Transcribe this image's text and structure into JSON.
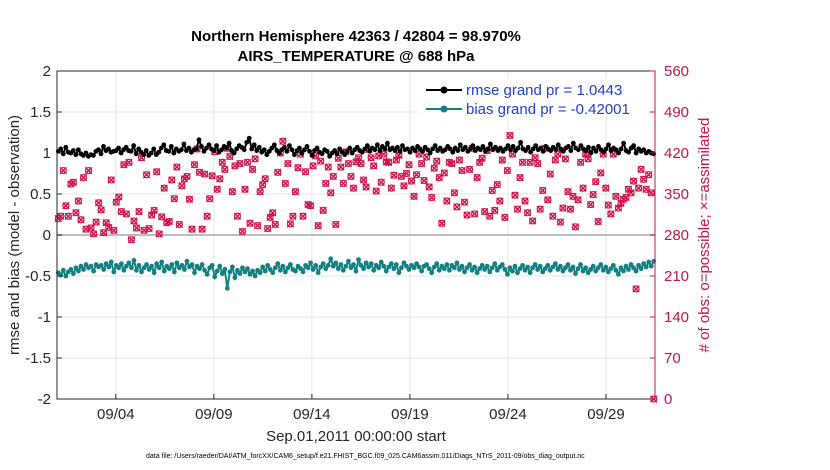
{
  "chart_data": {
    "type": "line",
    "title": "Northern Hemisphere 42363 / 42804 = 98.970%",
    "subtitle": "AIRS_TEMPERATURE @ 688 hPa",
    "xlabel": "Sep.01,2011 00:00:00 start",
    "ylabel": "rmse and bias (model - observation)",
    "ylabel_right": "# of obs: o=possible; ×=assimilated",
    "footnote": "data file: /Users/raeder/DAI/ATM_forcXX/CAM6_setup/f.e21.FHIST_BGC.f09_025.CAM6assim.011/Diags_NTrS_2011-09/obs_diag_output.nc",
    "xlim": [
      1,
      31.5
    ],
    "ylim": [
      -2,
      2
    ],
    "ylim_right": [
      0,
      560
    ],
    "x_ticks": [
      4,
      9,
      14,
      19,
      24,
      29
    ],
    "x_tick_labels": [
      "09/04",
      "09/09",
      "09/14",
      "09/19",
      "09/24",
      "09/29"
    ],
    "y_ticks": [
      -2,
      -1.5,
      -1,
      -0.5,
      0,
      0.5,
      1,
      1.5,
      2
    ],
    "y_tick_labels": [
      "-2",
      "-1.5",
      "-1",
      "-0.5",
      "0",
      "0.5",
      "1",
      "1.5",
      "2"
    ],
    "y_right_ticks": [
      0,
      70,
      140,
      210,
      280,
      350,
      420,
      490,
      560
    ],
    "y_right_tick_labels": [
      "0",
      "70",
      "140",
      "210",
      "280",
      "350",
      "420",
      "490",
      "560"
    ],
    "legend": {
      "position": "top-right",
      "entries": [
        "rmse grand pr = 1.0443",
        "bias grand pr = -0.42001"
      ]
    },
    "series": [
      {
        "name": "rmse grand pr = 1.0443",
        "axis": "left",
        "color": "#000000",
        "values": [
          1.02,
          1.05,
          0.99,
          1.07,
          1.01,
          1.0,
          1.03,
          0.98,
          1.04,
          0.99,
          0.97,
          1.0,
          0.96,
          0.98,
          0.97,
          1.02,
          1.04,
          0.99,
          1.08,
          1.03,
          1.05,
          1.01,
          1.02,
          1.03,
          1.06,
          1.0,
          1.04,
          1.07,
          1.03,
          1.02,
          1.09,
          0.99,
          1.05,
          1.01,
          0.98,
          1.03,
          0.97,
          1.0,
          1.05,
          0.98,
          1.01,
          1.06,
          1.1,
          1.03,
          1.02,
          1.08,
          1.0,
          1.05,
          1.02,
          1.04,
          1.11,
          1.03,
          1.06,
          1.01,
          1.04,
          1.05,
          1.16,
          1.08,
          1.02,
          1.06,
          1.1,
          1.05,
          1.03,
          1.09,
          1.01,
          1.04,
          1.08,
          1.06,
          1.12,
          1.03,
          1.0,
          1.05,
          1.09,
          1.07,
          1.04,
          1.13,
          1.18,
          1.05,
          1.1,
          1.03,
          1.07,
          1.01,
          1.04,
          0.98,
          1.02,
          1.06,
          1.1,
          1.03,
          1.0,
          1.04,
          1.07,
          1.02,
          1.09,
          1.04,
          0.98,
          1.03,
          1.06,
          1.0,
          1.04,
          1.08,
          1.02,
          0.97,
          1.03,
          1.06,
          1.01,
          0.99,
          1.04,
          1.02,
          0.96,
          1.0,
          1.03,
          0.99,
          1.05,
          1.01,
          0.98,
          1.02,
          1.06,
          1.0,
          1.04,
          1.07,
          1.03,
          1.01,
          1.05,
          1.09,
          1.02,
          1.06,
          1.04,
          1.1,
          1.03,
          1.08,
          1.05,
          1.12,
          1.04,
          1.06,
          1.03,
          1.07,
          1.02,
          1.09,
          1.04,
          1.05,
          1.01,
          1.06,
          1.03,
          1.08,
          1.05,
          1.02,
          1.07,
          1.04,
          1.0,
          1.05,
          1.09,
          1.03,
          1.06,
          1.02,
          1.04,
          1.08,
          1.05,
          1.01,
          1.06,
          1.03,
          1.1,
          1.04,
          1.07,
          1.02,
          1.05,
          1.09,
          1.03,
          1.06,
          1.04,
          1.08,
          1.02,
          1.05,
          1.11,
          1.04,
          1.07,
          1.03,
          1.06,
          1.02,
          1.05,
          1.09,
          1.04,
          1.08,
          1.03,
          1.06,
          1.13,
          1.05,
          1.03,
          1.07,
          1.01,
          1.05,
          1.09,
          1.04,
          1.06,
          1.02,
          1.08,
          1.05,
          1.03,
          1.07,
          1.04,
          1.1,
          1.05,
          1.02,
          1.06,
          1.08,
          1.03,
          1.12,
          1.06,
          1.04,
          1.09,
          1.05,
          1.03,
          1.07,
          1.0,
          1.06,
          1.02,
          1.08,
          1.04,
          1.01,
          1.05,
          1.1,
          1.03,
          1.06,
          1.04,
          1.0,
          1.05,
          1.12,
          1.03,
          1.01,
          1.06,
          1.09,
          1.0,
          1.05,
          1.02,
          1.04,
          1.0,
          1.02,
          1.0,
          0.99
        ]
      },
      {
        "name": "bias grand pr = -0.42001",
        "axis": "left",
        "color": "#128080",
        "values": [
          -0.46,
          -0.49,
          -0.43,
          -0.5,
          -0.45,
          -0.42,
          -0.47,
          -0.4,
          -0.44,
          -0.38,
          -0.42,
          -0.36,
          -0.4,
          -0.38,
          -0.44,
          -0.36,
          -0.39,
          -0.37,
          -0.42,
          -0.35,
          -0.39,
          -0.33,
          -0.45,
          -0.37,
          -0.4,
          -0.35,
          -0.43,
          -0.38,
          -0.34,
          -0.4,
          -0.31,
          -0.43,
          -0.37,
          -0.45,
          -0.4,
          -0.36,
          -0.42,
          -0.38,
          -0.46,
          -0.35,
          -0.4,
          -0.33,
          -0.44,
          -0.38,
          -0.41,
          -0.36,
          -0.45,
          -0.34,
          -0.4,
          -0.37,
          -0.42,
          -0.32,
          -0.39,
          -0.36,
          -0.46,
          -0.38,
          -0.41,
          -0.36,
          -0.43,
          -0.48,
          -0.4,
          -0.37,
          -0.51,
          -0.44,
          -0.38,
          -0.47,
          -0.42,
          -0.65,
          -0.45,
          -0.39,
          -0.52,
          -0.43,
          -0.47,
          -0.4,
          -0.45,
          -0.41,
          -0.48,
          -0.44,
          -0.5,
          -0.43,
          -0.46,
          -0.39,
          -0.44,
          -0.37,
          -0.42,
          -0.46,
          -0.4,
          -0.35,
          -0.43,
          -0.38,
          -0.45,
          -0.4,
          -0.36,
          -0.42,
          -0.44,
          -0.38,
          -0.41,
          -0.45,
          -0.37,
          -0.4,
          -0.34,
          -0.42,
          -0.37,
          -0.46,
          -0.39,
          -0.35,
          -0.41,
          -0.37,
          -0.29,
          -0.38,
          -0.34,
          -0.41,
          -0.36,
          -0.43,
          -0.38,
          -0.32,
          -0.4,
          -0.36,
          -0.44,
          -0.3,
          -0.37,
          -0.41,
          -0.34,
          -0.39,
          -0.35,
          -0.43,
          -0.37,
          -0.4,
          -0.33,
          -0.38,
          -0.44,
          -0.39,
          -0.35,
          -0.41,
          -0.36,
          -0.46,
          -0.4,
          -0.34,
          -0.38,
          -0.42,
          -0.37,
          -0.4,
          -0.35,
          -0.39,
          -0.44,
          -0.38,
          -0.36,
          -0.41,
          -0.46,
          -0.39,
          -0.35,
          -0.43,
          -0.38,
          -0.41,
          -0.36,
          -0.43,
          -0.37,
          -0.4,
          -0.34,
          -0.42,
          -0.38,
          -0.45,
          -0.4,
          -0.36,
          -0.43,
          -0.39,
          -0.46,
          -0.41,
          -0.37,
          -0.42,
          -0.38,
          -0.45,
          -0.4,
          -0.35,
          -0.43,
          -0.39,
          -0.36,
          -0.42,
          -0.48,
          -0.4,
          -0.44,
          -0.38,
          -0.46,
          -0.41,
          -0.37,
          -0.43,
          -0.39,
          -0.46,
          -0.4,
          -0.36,
          -0.42,
          -0.38,
          -0.45,
          -0.41,
          -0.37,
          -0.43,
          -0.39,
          -0.35,
          -0.42,
          -0.38,
          -0.44,
          -0.4,
          -0.36,
          -0.43,
          -0.39,
          -0.47,
          -0.41,
          -0.36,
          -0.44,
          -0.4,
          -0.46,
          -0.42,
          -0.38,
          -0.44,
          -0.4,
          -0.36,
          -0.43,
          -0.39,
          -0.45,
          -0.41,
          -0.37,
          -0.43,
          -0.48,
          -0.4,
          -0.44,
          -0.38,
          -0.42,
          -0.36,
          -0.4,
          -0.44,
          -0.37,
          -0.41,
          -0.35,
          -0.39,
          -0.33,
          -0.38,
          -0.32
        ]
      }
    ],
    "obs_counts": {
      "name": "# of obs",
      "axis": "right",
      "color": "#d0104a",
      "values": [
        308,
        312,
        390,
        330,
        312,
        367,
        370,
        318,
        338,
        306,
        378,
        290,
        390,
        292,
        282,
        302,
        335,
        323,
        284,
        301,
        293,
        374,
        288,
        336,
        345,
        320,
        400,
        316,
        404,
        272,
        304,
        292,
        320,
        412,
        288,
        383,
        291,
        314,
        322,
        388,
        282,
        311,
        360,
        301,
        303,
        374,
        342,
        396,
        298,
        364,
        376,
        380,
        341,
        290,
        400,
        427,
        387,
        290,
        384,
        312,
        342,
        381,
        422,
        358,
        376,
        404,
        392,
        428,
        414,
        354,
        398,
        312,
        402,
        286,
        358,
        404,
        300,
        392,
        410,
        296,
        354,
        366,
        376,
        291,
        310,
        318,
        298,
        387,
        420,
        440,
        368,
        402,
        299,
        312,
        354,
        395,
        418,
        312,
        388,
        332,
        330,
        398,
        415,
        296,
        406,
        322,
        368,
        396,
        352,
        380,
        298,
        411,
        396,
        368,
        422,
        402,
        380,
        360,
        405,
        412,
        402,
        374,
        362,
        426,
        412,
        398,
        355,
        415,
        370,
        418,
        405,
        404,
        360,
        382,
        408,
        416,
        380,
        364,
        385,
        400,
        372,
        346,
        383,
        418,
        402,
        373,
        413,
        362,
        344,
        394,
        406,
        378,
        300,
        386,
        338,
        404,
        402,
        352,
        328,
        408,
        390,
        336,
        314,
        392,
        428,
        316,
        378,
        404,
        411,
        320,
        424,
        312,
        356,
        322,
        366,
        338,
        408,
        310,
        390,
        450,
        418,
        348,
        324,
        378,
        404,
        338,
        318,
        404,
        304,
        412,
        402,
        324,
        356,
        428,
        340,
        384,
        312,
        408,
        418,
        302,
        326,
        410,
        354,
        324,
        346,
        294,
        340,
        404,
        360,
        418,
        410,
        332,
        349,
        371,
        303,
        386,
        418,
        360,
        331,
        316,
        418,
        346,
        326,
        334,
        341,
        344,
        358,
        352,
        372,
        188,
        360,
        392,
        375,
        358,
        383,
        352,
        0
      ]
    }
  }
}
